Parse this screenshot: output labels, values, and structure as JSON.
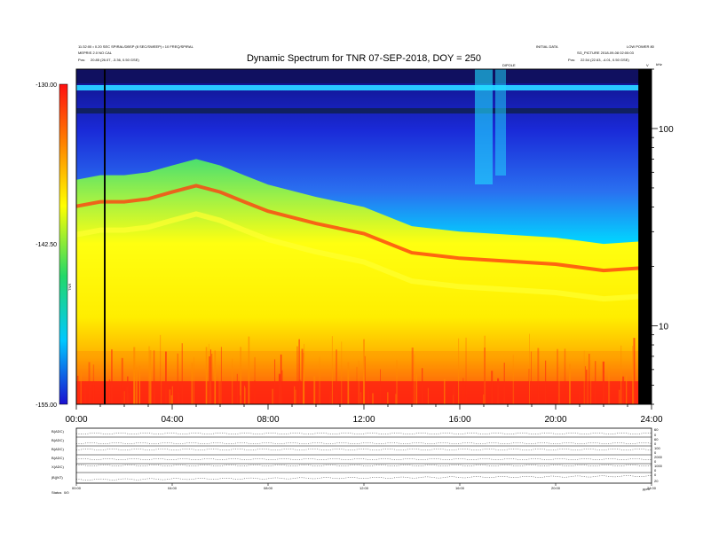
{
  "header": {
    "title": "Dynamic Spectrum for TNR 07-SEP-2018, DOY = 250",
    "left_line1": "11:32:00 • 0.20 SEC SPIRAL/DBSP (8 SEC/SWEEP) • 10 FREQ/SPIRAL",
    "left_line2": "MEPRIS 2.0 NO CAL",
    "left_pos_label": "Pos:",
    "left_pos_value": "20.85 (26.07, -3.36, 0.50 GSE)",
    "right_line1": "INITIAL DATA",
    "right_line2": "LOW POWER 80",
    "right_line3": "SG_PICTURE 2018-09-08 02:00:03",
    "right_pos_label": "Pos:",
    "right_pos_value": "22.54 (22.63, -4.01, 0.50 GSE)",
    "dipole_label": "DIPOLE",
    "khz_label": "kHz"
  },
  "colorbar": {
    "tick_labels": [
      "-130.00",
      "-142.50",
      "-155.00"
    ],
    "unit_label": "TNR"
  },
  "spectrogram": {
    "time_labels": [
      "00:00",
      "04:00",
      "08:00",
      "12:00",
      "16:00",
      "20:00",
      "24:00"
    ],
    "freq_labels": [
      "100",
      "10"
    ]
  },
  "chart_data": {
    "type": "heatmap",
    "title": "Dynamic Spectrum for TNR 07-SEP-2018, DOY = 250",
    "x": {
      "label": "",
      "range": [
        "00:00",
        "24:00"
      ],
      "ticks": [
        "00:00",
        "04:00",
        "08:00",
        "12:00",
        "16:00",
        "20:00",
        "24:00"
      ]
    },
    "y": {
      "label": "kHz",
      "scale": "log",
      "range": [
        4,
        200
      ],
      "ticks": [
        10,
        100
      ]
    },
    "color_scale": {
      "range": [
        -155.0,
        -130.0
      ],
      "ticks": [
        -130.0,
        -142.5,
        -155.0
      ],
      "colors": [
        "#1a0fd0",
        "#00c8ff",
        "#22d86a",
        "#ffff00",
        "#ff8000",
        "#ff1010"
      ]
    },
    "background_boundary_khz": {
      "hours": [
        0,
        1,
        2,
        3,
        4,
        5,
        6,
        7,
        8,
        10,
        12,
        14,
        16,
        18,
        20,
        22,
        24
      ],
      "khz": [
        55,
        58,
        58,
        60,
        65,
        70,
        65,
        58,
        52,
        45,
        40,
        32,
        30,
        29,
        28,
        26,
        27
      ]
    },
    "data_gaps_hours": [
      [
        1.15,
        1.22
      ],
      [
        23.45,
        24.0
      ]
    ]
  },
  "lower_panels": {
    "row_labels": [
      "B(ADC)",
      "B(ADC)",
      "B(ADC)",
      "B(ADC)",
      "X(ADC)",
      "|B|(NT)"
    ],
    "right_values": [
      [
        "60",
        "0"
      ],
      [
        "60",
        "0"
      ],
      [
        "100",
        "0"
      ],
      [
        "2000",
        "0"
      ],
      [
        "1000",
        "0"
      ],
      [
        "0",
        "20"
      ]
    ],
    "time_labels": [
      "00:00",
      "04:00",
      "08:00",
      "12:00",
      "16:00",
      "20:00",
      "24:00"
    ],
    "status_label": "Status",
    "status_value": "0/0",
    "footer_right": "ppm"
  }
}
